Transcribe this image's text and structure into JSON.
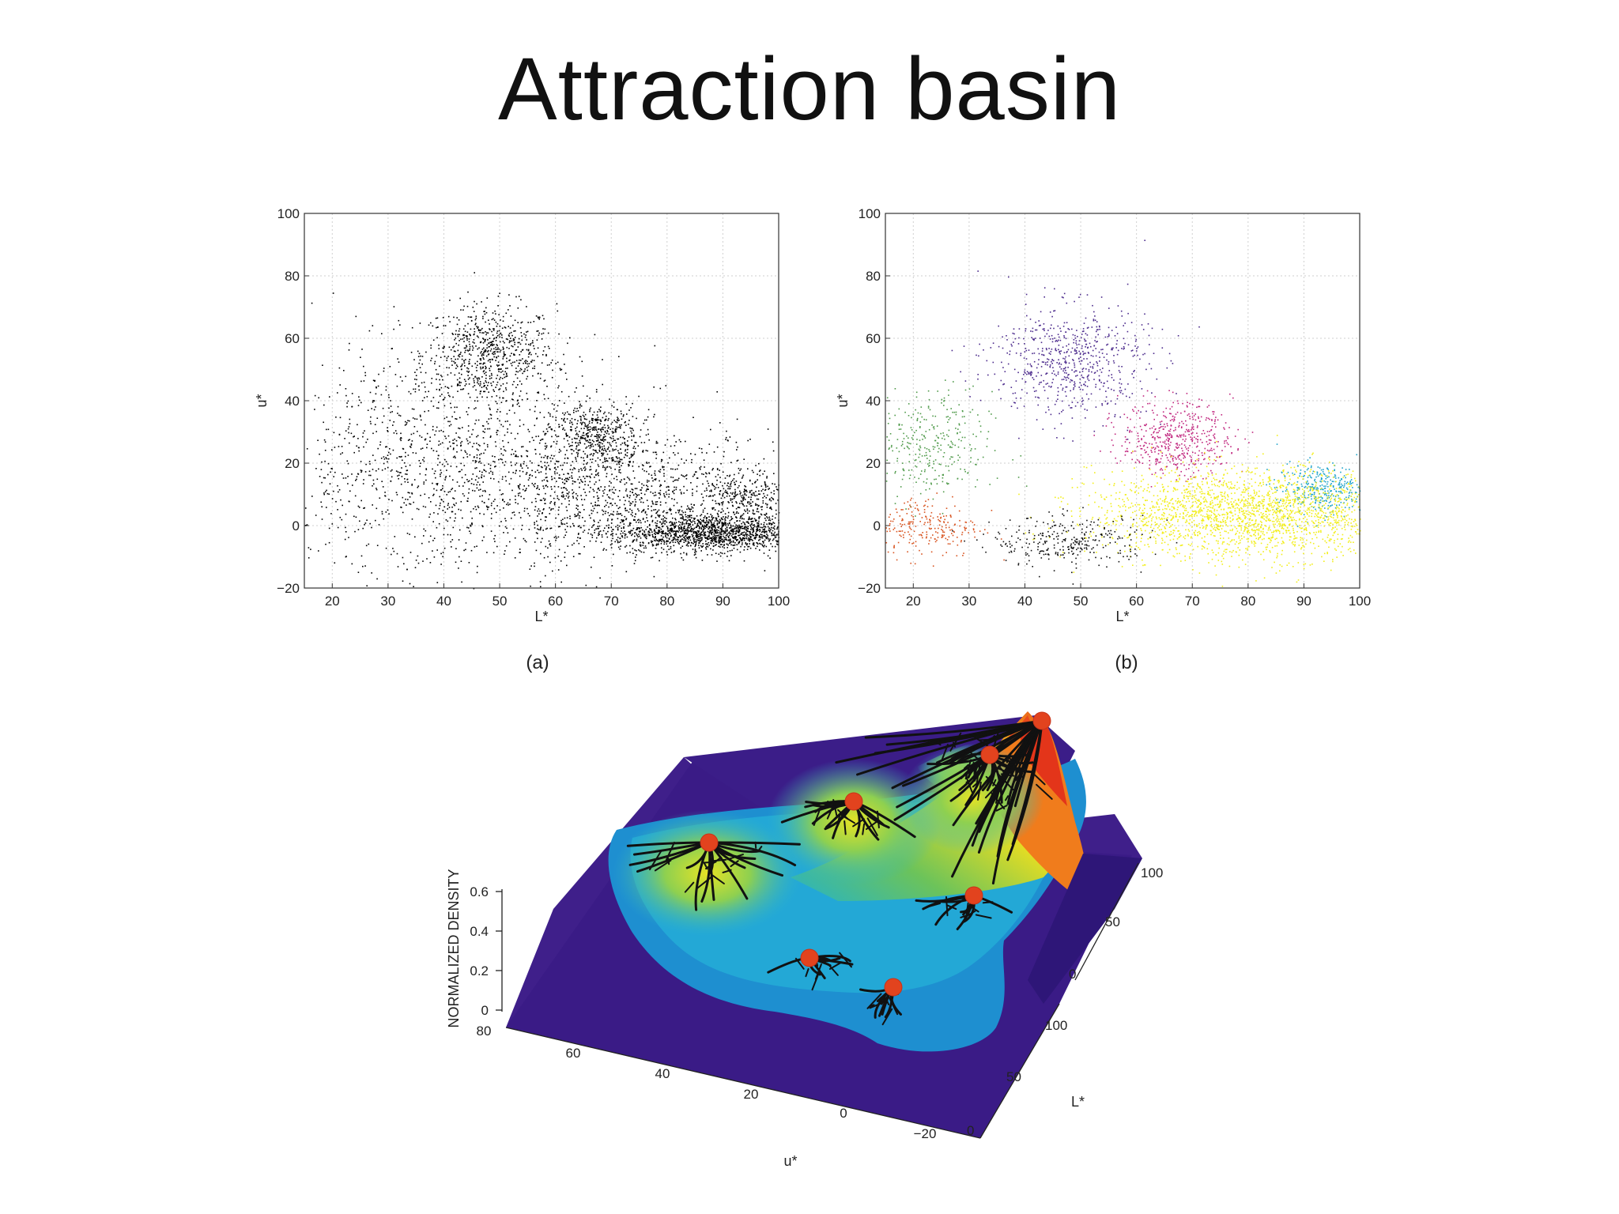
{
  "slide": {
    "title": "Attraction basin"
  },
  "panels": [
    {
      "caption": "(a)",
      "xlabel": "L*",
      "ylabel": "u*",
      "xticks": [
        "20",
        "30",
        "40",
        "50",
        "60",
        "70",
        "80",
        "90",
        "100"
      ],
      "yticks": [
        "-20",
        "0",
        "20",
        "40",
        "60",
        "80",
        "100"
      ]
    },
    {
      "caption": "(b)",
      "xlabel": "L*",
      "ylabel": "u*",
      "xticks": [
        "20",
        "30",
        "40",
        "50",
        "60",
        "70",
        "80",
        "90",
        "100"
      ],
      "yticks": [
        "-20",
        "0",
        "20",
        "40",
        "60",
        "80",
        "100"
      ]
    }
  ],
  "surface": {
    "zlabel": "NORMALIZED DENSITY",
    "ulabel": "u*",
    "llabel": "L*",
    "zticks": [
      "0",
      "0.2",
      "0.4",
      "0.6"
    ],
    "uticks": [
      "80",
      "60",
      "40",
      "20",
      "0",
      "-20"
    ],
    "lticks": [
      "0",
      "50",
      "100"
    ],
    "backticks": [
      "0",
      "50",
      "100"
    ]
  },
  "chart_data": [
    {
      "type": "scatter",
      "xlabel": "L*",
      "ylabel": "u*",
      "xlim": [
        15,
        100
      ],
      "ylim": [
        -20,
        100
      ],
      "grid": true,
      "color": "#000000",
      "clusters": [
        {
          "center": [
            48,
            55
          ],
          "spread": [
            6,
            8
          ],
          "points": 700
        },
        {
          "center": [
            67,
            29
          ],
          "spread": [
            4,
            5
          ],
          "points": 450
        },
        {
          "center": [
            88,
            -2
          ],
          "spread": [
            9,
            3
          ],
          "points": 1500
        },
        {
          "center": [
            94,
            8
          ],
          "spread": [
            4,
            5
          ],
          "points": 300
        },
        {
          "center": [
            40,
            20
          ],
          "spread": [
            16,
            18
          ],
          "points": 1300
        },
        {
          "center": [
            72,
            10
          ],
          "spread": [
            14,
            10
          ],
          "points": 1100
        }
      ]
    },
    {
      "type": "scatter",
      "xlabel": "L*",
      "ylabel": "u*",
      "xlim": [
        15,
        100
      ],
      "ylim": [
        -20,
        100
      ],
      "grid": true,
      "clusters": [
        {
          "center": [
            48,
            53
          ],
          "spread": [
            7,
            9
          ],
          "points": 650,
          "color": "#4b2a8c"
        },
        {
          "center": [
            67,
            28
          ],
          "spread": [
            5,
            6
          ],
          "points": 500,
          "color": "#c0267e"
        },
        {
          "center": [
            22,
            25
          ],
          "spread": [
            6,
            9
          ],
          "points": 350,
          "color": "#4f9a4a"
        },
        {
          "center": [
            22,
            0
          ],
          "spread": [
            5,
            5
          ],
          "points": 250,
          "color": "#d8531f"
        },
        {
          "center": [
            93,
            12
          ],
          "spread": [
            4,
            4
          ],
          "points": 350,
          "color": "#1fa3c9"
        },
        {
          "center": [
            80,
            4
          ],
          "spread": [
            14,
            7
          ],
          "points": 2200,
          "color": "#f2ee1a"
        },
        {
          "center": [
            48,
            -5
          ],
          "spread": [
            7,
            4
          ],
          "points": 300,
          "color": "#111111"
        }
      ]
    },
    {
      "type": "surface",
      "xlabel": "u*",
      "ylabel": "L*",
      "zlabel": "NORMALIZED DENSITY",
      "xlim": [
        -20,
        80
      ],
      "ylim": [
        0,
        100
      ],
      "zlim": [
        0,
        0.6
      ],
      "colormap": "parula-like",
      "peak_count": 7
    }
  ]
}
